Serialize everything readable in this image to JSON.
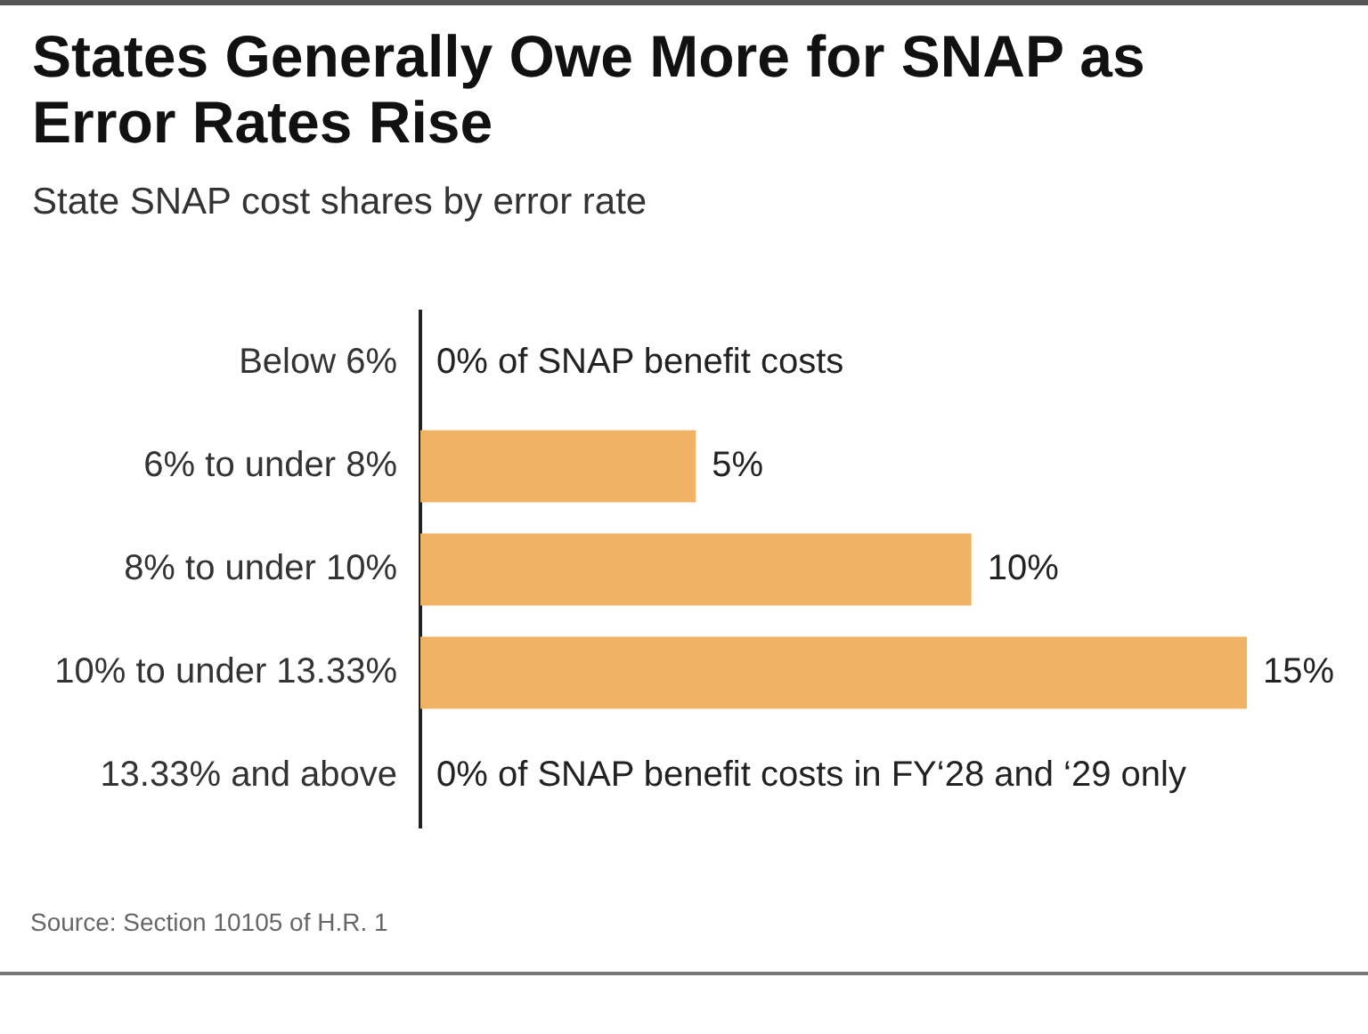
{
  "chart_data": {
    "type": "bar",
    "orientation": "horizontal",
    "title": "States Generally Owe More for SNAP as Error Rates Rise",
    "subtitle": "State SNAP cost shares by error rate",
    "categories": [
      "Below 6%",
      "6% to under 8%",
      "8% to under 10%",
      "10% to under 13.33%",
      "13.33% and above"
    ],
    "values": [
      0,
      5,
      10,
      15,
      0
    ],
    "color": "#f0b366",
    "value_labels": [
      "0% of SNAP benefit costs",
      "5%",
      "10%",
      "15%",
      "0% of SNAP benefit costs in FY‘28 and ‘29 only"
    ],
    "annotations": [
      "Source: Section 10105 of H.R. 1"
    ]
  }
}
